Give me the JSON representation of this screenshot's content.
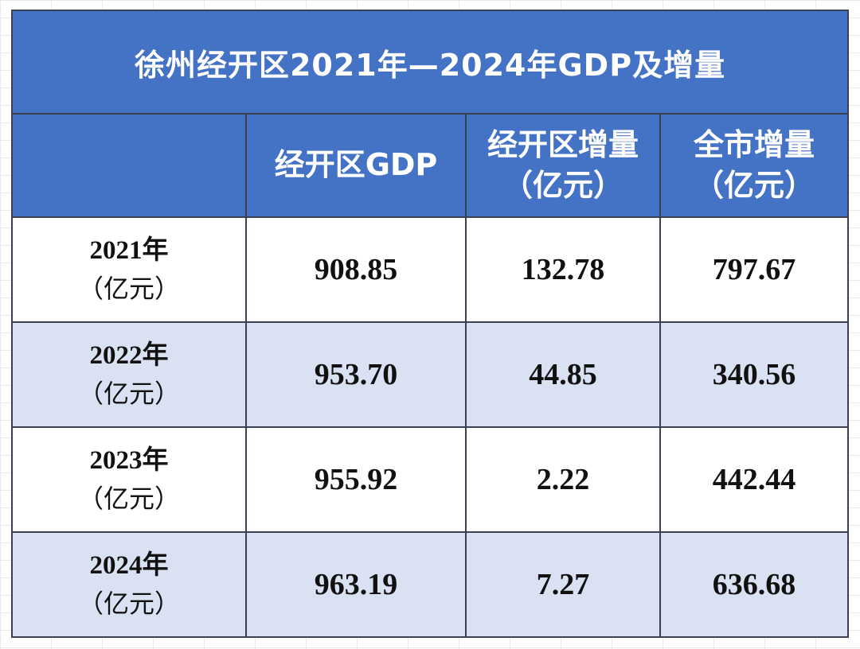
{
  "title": "徐州经开区2021年—2024年GDP及增量",
  "columns": [
    {
      "line1": "",
      "line2": ""
    },
    {
      "line1": "经开区GDP",
      "line2": ""
    },
    {
      "line1": "经开区增量",
      "line2": "（亿元）"
    },
    {
      "line1": "全市增量",
      "line2": "（亿元）"
    }
  ],
  "rows": [
    {
      "year": "2021年",
      "unit": "（亿元）",
      "gdp": "908.85",
      "zone_increase": "132.78",
      "city_increase": "797.67"
    },
    {
      "year": "2022年",
      "unit": "（亿元）",
      "gdp": "953.70",
      "zone_increase": "44.85",
      "city_increase": "340.56"
    },
    {
      "year": "2023年",
      "unit": "（亿元）",
      "gdp": "955.92",
      "zone_increase": "2.22",
      "city_increase": "442.44"
    },
    {
      "year": "2024年",
      "unit": "（亿元）",
      "gdp": "963.19",
      "zone_increase": "7.27",
      "city_increase": "636.68"
    }
  ],
  "colors": {
    "header_blue": "#4472c4",
    "alt_row": "#d9e1f2",
    "border": "#3a3f52"
  },
  "chart_data": {
    "type": "table",
    "title": "徐州经开区2021年—2024年GDP及增量",
    "columns": [
      "",
      "经开区GDP",
      "经开区增量（亿元）",
      "全市增量（亿元）"
    ],
    "rows": [
      [
        "2021年（亿元）",
        908.85,
        132.78,
        797.67
      ],
      [
        "2022年（亿元）",
        953.7,
        44.85,
        340.56
      ],
      [
        "2023年（亿元）",
        955.92,
        2.22,
        442.44
      ],
      [
        "2024年（亿元）",
        963.19,
        7.27,
        636.68
      ]
    ]
  }
}
